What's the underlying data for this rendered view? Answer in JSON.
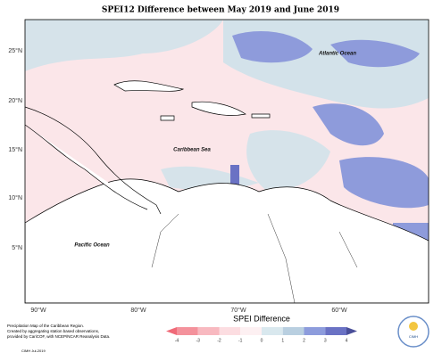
{
  "title": "SPEI12 Difference between May 2019 and June 2019",
  "lat_ticks": [
    "25°N",
    "20°N",
    "15°N",
    "10°N",
    "5°N"
  ],
  "lon_ticks": [
    "90°W",
    "80°W",
    "70°W",
    "60°W"
  ],
  "places": [
    "Atlantic Ocean",
    "Caribbean Sea",
    "Pacific Ocean"
  ],
  "legend": {
    "title": "SPEI Difference",
    "ticks": [
      -4,
      -3,
      -2,
      -1,
      0,
      1,
      2,
      3,
      4
    ],
    "colors": [
      "#f06a78",
      "#f4929c",
      "#f8b9c0",
      "#fcdde1",
      "#fdf0f2",
      "#d9e8ee",
      "#b9cfe0",
      "#8d9cdc",
      "#6a72c4",
      "#4a4f99"
    ]
  },
  "notes": [
    "Precipitation Map of the Caribbean Region.",
    "Created by aggregating station based observations,",
    "provided by CariCOF, with NCEP/NCAR Reanalysis Data."
  ],
  "credit": "CIMH  Jul-2019",
  "logo": "CIMH"
}
